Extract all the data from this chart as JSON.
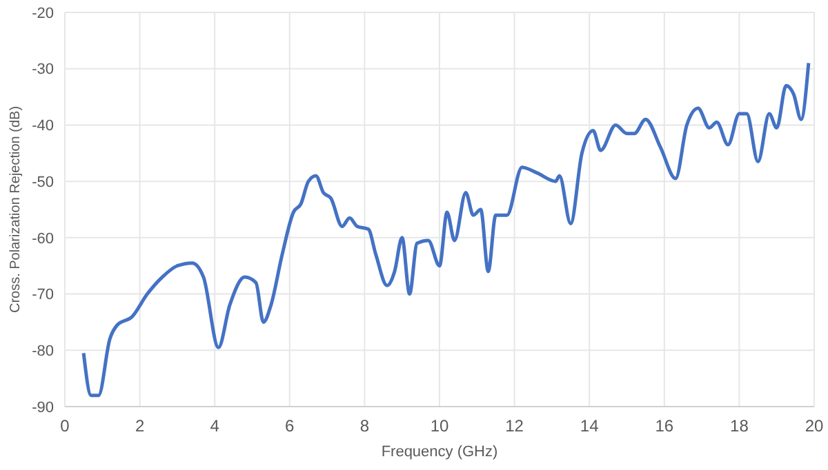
{
  "chart_data": {
    "type": "line",
    "xlabel": "Frequency (GHz)",
    "ylabel": "Cross. Polarization Rejection (dB)",
    "xlim": [
      0,
      20
    ],
    "xticks": [
      0,
      2,
      4,
      6,
      8,
      10,
      12,
      14,
      16,
      18,
      20
    ],
    "ylim": [
      -90,
      -20
    ],
    "yticks": [
      -90,
      -80,
      -70,
      -60,
      -50,
      -40,
      -30,
      -20
    ],
    "grid": true,
    "marker": "none",
    "line_style": "solid",
    "series": [
      {
        "color": "#4472c4",
        "x": [
          0.5,
          0.7,
          0.9,
          1.2,
          1.4,
          1.8,
          2.2,
          2.6,
          3.0,
          3.4,
          3.7,
          4.1,
          4.4,
          4.8,
          5.1,
          5.3,
          5.5,
          5.8,
          6.1,
          6.3,
          6.5,
          6.7,
          6.9,
          7.1,
          7.4,
          7.6,
          7.8,
          8.1,
          8.3,
          8.6,
          8.8,
          9.0,
          9.2,
          9.4,
          9.7,
          10.0,
          10.2,
          10.4,
          10.7,
          10.9,
          11.1,
          11.3,
          11.5,
          11.8,
          12.2,
          12.6,
          13.1,
          13.2,
          13.5,
          13.8,
          14.1,
          14.3,
          14.7,
          15.0,
          15.2,
          15.5,
          15.9,
          16.3,
          16.6,
          16.9,
          17.2,
          17.4,
          17.7,
          18.0,
          18.2,
          18.5,
          18.8,
          19.0,
          19.25,
          19.45,
          19.65,
          19.85
        ],
        "values": [
          -80.5,
          -88,
          -88,
          -78,
          -75.5,
          -74,
          -70,
          -67,
          -65,
          -64.5,
          -67,
          -79.5,
          -72,
          -67,
          -68,
          -75,
          -72,
          -63,
          -55.5,
          -54,
          -50,
          -49,
          -52,
          -53,
          -58,
          -56.5,
          -58,
          -58.5,
          -63,
          -68.5,
          -66,
          -60,
          -70,
          -61,
          -60.5,
          -65,
          -55.5,
          -60.5,
          -52,
          -56,
          -55,
          -66,
          -56,
          -56,
          -47.5,
          -48.5,
          -50,
          -49,
          -57.5,
          -45,
          -41,
          -44.5,
          -40,
          -41.5,
          -41.5,
          -39,
          -44,
          -49.5,
          -40,
          -37,
          -40.5,
          -39.5,
          -43.5,
          -38,
          -38,
          -46.5,
          -38,
          -40.5,
          -33,
          -34.5,
          -39,
          -29
        ]
      }
    ]
  }
}
